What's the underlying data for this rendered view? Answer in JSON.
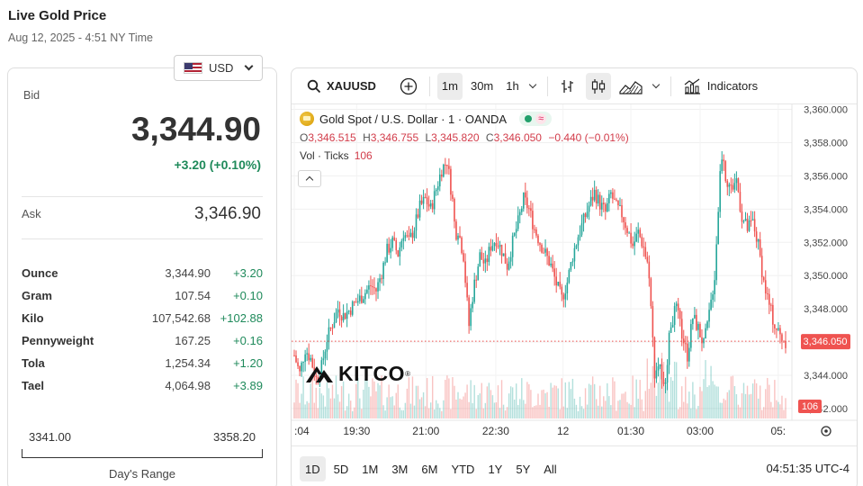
{
  "page": {
    "title": "Live Gold Price",
    "date": "Aug 12, 2025 - 4:51 NY Time"
  },
  "currency": {
    "selected": "USD"
  },
  "price": {
    "bid_label": "Bid",
    "bid": "3,344.90",
    "change": "+3.20 (+0.10%)",
    "ask_label": "Ask",
    "ask": "3,346.90"
  },
  "units": [
    {
      "name": "Ounce",
      "price": "3,344.90",
      "change": "+3.20"
    },
    {
      "name": "Gram",
      "price": "107.54",
      "change": "+0.10"
    },
    {
      "name": "Kilo",
      "price": "107,542.68",
      "change": "+102.88"
    },
    {
      "name": "Pennyweight",
      "price": "167.25",
      "change": "+0.16"
    },
    {
      "name": "Tola",
      "price": "1,254.34",
      "change": "+1.20"
    },
    {
      "name": "Tael",
      "price": "4,064.98",
      "change": "+3.89"
    }
  ],
  "days_range": {
    "low": "3341.00",
    "high": "3358.20",
    "label": "Day's Range",
    "low_value": 3341.0,
    "high_value": 3358.2
  },
  "chart_toolbar": {
    "symbol": "XAUUSD",
    "intervals": [
      "1m",
      "30m",
      "1h"
    ],
    "active_interval": "1m",
    "indicators_label": "Indicators"
  },
  "chart_legend": {
    "title": "Gold Spot / U.S. Dollar · 1 · OANDA",
    "o_label": "O",
    "o": "3,346.515",
    "h_label": "H",
    "h": "3,346.755",
    "l_label": "L",
    "l": "3,345.820",
    "c_label": "C",
    "c": "3,346.050",
    "change": "−0.440 (−0.01%)",
    "vol_label": "Vol · Ticks",
    "vol_value": "106"
  },
  "chart_bottom": {
    "ranges": [
      "1D",
      "5D",
      "1M",
      "3M",
      "6M",
      "YTD",
      "1Y",
      "5Y",
      "All"
    ],
    "active_range": "1D",
    "clock": "04:51:35 UTC-4"
  },
  "logo_text": "KITCO",
  "colors": {
    "up": "#26a69a",
    "down": "#ef5350",
    "positive_text": "#1f8a5b",
    "price_tag": "#ef5350"
  },
  "chart_data": {
    "type": "candlestick",
    "symbol": "XAUUSD",
    "y_ticks": [
      "3,360.000",
      "3,358.000",
      "3,356.000",
      "3,354.000",
      "3,352.000",
      "3,350.000",
      "3,348.000",
      "3,346.000",
      "3,344.000",
      "3,342.000"
    ],
    "y_tick_values": [
      3360,
      3358,
      3356,
      3354,
      3352,
      3350,
      3348,
      3346,
      3344,
      3342
    ],
    "ylim": [
      3341.4,
      3360.3
    ],
    "x_ticks": [
      ":04",
      "19:30",
      "21:00",
      "22:30",
      "12",
      "01:30",
      "03:00",
      "05:"
    ],
    "last_price_label": "3,346.050",
    "last_price": 3346.05,
    "last_volume_label": "106",
    "close_path": [
      [
        0,
        3345.2
      ],
      [
        2,
        3344.1
      ],
      [
        4,
        3345.6
      ],
      [
        6,
        3345.0
      ],
      [
        8,
        3343.8
      ],
      [
        10,
        3344.5
      ],
      [
        12,
        3346.2
      ],
      [
        14,
        3347.1
      ],
      [
        16,
        3348.0
      ],
      [
        18,
        3347.6
      ],
      [
        20,
        3347.9
      ],
      [
        22,
        3348.3
      ],
      [
        24,
        3348.6
      ],
      [
        26,
        3349.0
      ],
      [
        28,
        3349.4
      ],
      [
        30,
        3349.1
      ],
      [
        32,
        3350.2
      ],
      [
        34,
        3351.5
      ],
      [
        36,
        3352.0
      ],
      [
        38,
        3351.3
      ],
      [
        40,
        3352.6
      ],
      [
        42,
        3352.0
      ],
      [
        44,
        3352.9
      ],
      [
        46,
        3354.1
      ],
      [
        48,
        3354.6
      ],
      [
        50,
        3354.0
      ],
      [
        52,
        3355.2
      ],
      [
        54,
        3356.4
      ],
      [
        56,
        3356.9
      ],
      [
        58,
        3354.5
      ],
      [
        59,
        3352.5
      ],
      [
        60,
        3352.8
      ],
      [
        62,
        3351.2
      ],
      [
        63,
        3349.0
      ],
      [
        64,
        3347.0
      ],
      [
        65,
        3348.4
      ],
      [
        66,
        3349.5
      ],
      [
        68,
        3351.2
      ],
      [
        70,
        3350.6
      ],
      [
        72,
        3351.8
      ],
      [
        74,
        3352.2
      ],
      [
        76,
        3351.5
      ],
      [
        78,
        3350.6
      ],
      [
        80,
        3352.0
      ],
      [
        82,
        3353.2
      ],
      [
        84,
        3354.6
      ],
      [
        86,
        3354.0
      ],
      [
        88,
        3352.8
      ],
      [
        90,
        3352.0
      ],
      [
        92,
        3351.3
      ],
      [
        94,
        3350.6
      ],
      [
        96,
        3349.5
      ],
      [
        98,
        3348.6
      ],
      [
        100,
        3349.6
      ],
      [
        102,
        3351.2
      ],
      [
        104,
        3352.4
      ],
      [
        106,
        3353.3
      ],
      [
        108,
        3354.2
      ],
      [
        110,
        3355.0
      ],
      [
        112,
        3354.3
      ],
      [
        114,
        3353.8
      ],
      [
        116,
        3354.9
      ],
      [
        118,
        3354.1
      ],
      [
        120,
        3353.7
      ],
      [
        122,
        3352.8
      ],
      [
        124,
        3351.8
      ],
      [
        126,
        3352.6
      ],
      [
        128,
        3351.7
      ],
      [
        130,
        3350.2
      ],
      [
        131,
        3347.0
      ],
      [
        132,
        3344.2
      ],
      [
        134,
        3344.8
      ],
      [
        135,
        3342.8
      ],
      [
        136,
        3344.0
      ],
      [
        138,
        3347.2
      ],
      [
        140,
        3348.0
      ],
      [
        142,
        3346.5
      ],
      [
        144,
        3345.2
      ],
      [
        146,
        3347.5
      ],
      [
        148,
        3346.8
      ],
      [
        150,
        3345.8
      ],
      [
        152,
        3347.6
      ],
      [
        154,
        3350.0
      ],
      [
        155,
        3353.0
      ],
      [
        156,
        3356.2
      ],
      [
        157,
        3357.8
      ],
      [
        158,
        3356.0
      ],
      [
        160,
        3355.2
      ],
      [
        162,
        3355.8
      ],
      [
        164,
        3353.5
      ],
      [
        166,
        3352.8
      ],
      [
        168,
        3353.2
      ],
      [
        170,
        3351.8
      ],
      [
        172,
        3349.6
      ],
      [
        174,
        3348.2
      ],
      [
        176,
        3347.0
      ],
      [
        178,
        3346.4
      ],
      [
        180,
        3346.05
      ]
    ]
  }
}
